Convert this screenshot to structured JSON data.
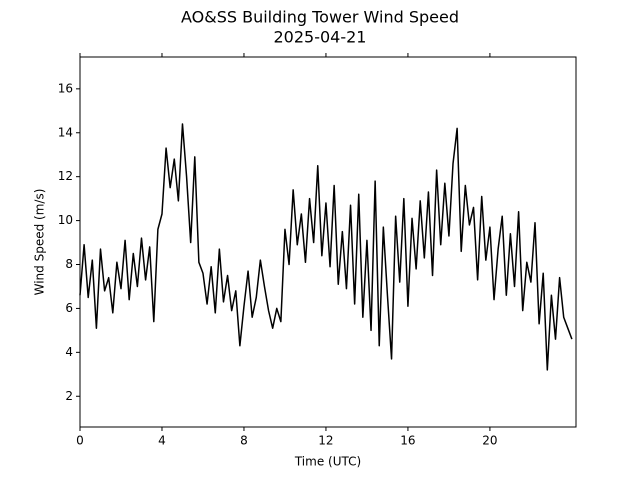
{
  "chart_data": {
    "type": "line",
    "title": "AO&SS Building Tower Wind Speed",
    "subtitle": "2025-04-21",
    "xlabel": "Time (UTC)",
    "ylabel": "Wind Speed (m/s)",
    "xlim": [
      0,
      24.2
    ],
    "xticks": [
      0,
      4,
      8,
      12,
      16,
      20
    ],
    "ylim": [
      0.6,
      17.45
    ],
    "yticks": [
      2,
      4,
      6,
      8,
      10,
      12,
      14,
      16
    ],
    "grid": false,
    "x": [
      0,
      0.2,
      0.4,
      0.6,
      0.8,
      1,
      1.2,
      1.4,
      1.6,
      1.8,
      2,
      2.2,
      2.4,
      2.6,
      2.8,
      3,
      3.2,
      3.4,
      3.6,
      3.8,
      4,
      4.2,
      4.4,
      4.6,
      4.8,
      5,
      5.2,
      5.4,
      5.6,
      5.8,
      6,
      6.2,
      6.4,
      6.6,
      6.8,
      7,
      7.2,
      7.4,
      7.6,
      7.8,
      8,
      8.2,
      8.4,
      8.6,
      8.8,
      9,
      9.2,
      9.4,
      9.6,
      9.8,
      10,
      10.2,
      10.4,
      10.6,
      10.8,
      11,
      11.2,
      11.4,
      11.6,
      11.8,
      12,
      12.2,
      12.4,
      12.6,
      12.8,
      13,
      13.2,
      13.4,
      13.6,
      13.8,
      14,
      14.2,
      14.4,
      14.6,
      14.8,
      15,
      15.2,
      15.4,
      15.6,
      15.8,
      16,
      16.2,
      16.4,
      16.6,
      16.8,
      17,
      17.2,
      17.4,
      17.6,
      17.8,
      18,
      18.2,
      18.4,
      18.6,
      18.8,
      19,
      19.2,
      19.4,
      19.6,
      19.8,
      20,
      20.2,
      20.4,
      20.6,
      20.8,
      21,
      21.2,
      21.4,
      21.6,
      21.8,
      22,
      22.2,
      22.4,
      22.6,
      22.8,
      23,
      23.2,
      23.4,
      23.6,
      23.8,
      24
    ],
    "series": [
      {
        "color": "#000000",
        "values": [
          6.6,
          8.9,
          6.5,
          8.2,
          5.1,
          8.7,
          6.8,
          7.4,
          5.8,
          8.1,
          6.9,
          9.1,
          6.4,
          8.5,
          7.0,
          9.2,
          7.3,
          8.8,
          5.4,
          9.6,
          10.3,
          13.3,
          11.5,
          12.8,
          10.9,
          14.4,
          12.0,
          9.0,
          12.9,
          8.1,
          7.6,
          6.2,
          7.9,
          5.8,
          8.7,
          6.3,
          7.5,
          5.9,
          6.8,
          4.3,
          6.1,
          7.7,
          5.6,
          6.5,
          8.2,
          7.0,
          5.9,
          5.1,
          6.0,
          5.4,
          9.6,
          8.0,
          11.4,
          8.9,
          10.3,
          8.1,
          11.0,
          9.0,
          12.5,
          8.4,
          10.8,
          7.9,
          11.6,
          7.1,
          9.5,
          6.9,
          10.7,
          6.2,
          11.2,
          5.6,
          9.1,
          5.0,
          11.8,
          4.3,
          9.7,
          6.6,
          3.7,
          10.2,
          7.2,
          11.0,
          6.1,
          10.1,
          7.8,
          10.9,
          8.3,
          11.3,
          7.5,
          12.3,
          8.9,
          11.7,
          9.3,
          12.6,
          14.2,
          8.6,
          11.6,
          9.8,
          10.6,
          7.3,
          11.1,
          8.2,
          9.7,
          6.4,
          8.7,
          10.2,
          6.6,
          9.4,
          7.0,
          10.4,
          5.9,
          8.1,
          7.2,
          9.9,
          5.3,
          7.6,
          3.2,
          6.6,
          4.6,
          7.4,
          5.6,
          5.1,
          4.6
        ]
      }
    ]
  }
}
